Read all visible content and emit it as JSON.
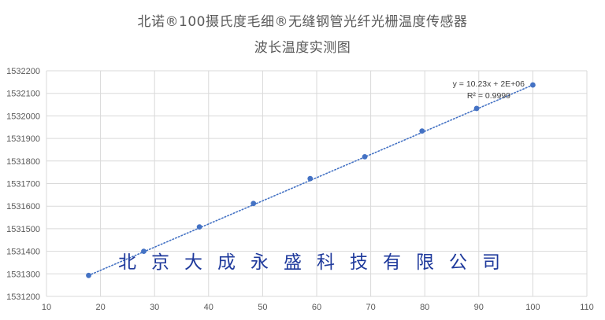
{
  "chart_data": {
    "type": "scatter",
    "title": "北诺®100摄氏度毛细®无缝钢管光纤光栅温度传感器",
    "subtitle": "波长温度实测图",
    "xlabel": "",
    "ylabel": "",
    "xlim": [
      10,
      110
    ],
    "ylim": [
      1531200,
      1532200
    ],
    "xticks": [
      "10",
      "20",
      "30",
      "40",
      "50",
      "60",
      "70",
      "80",
      "90",
      "100",
      "110"
    ],
    "yticks": [
      "1531200",
      "1531300",
      "1531400",
      "1531500",
      "1531600",
      "1531700",
      "1531800",
      "1531900",
      "1532000",
      "1532100",
      "1532200"
    ],
    "grid": true,
    "point_color": "#4472c4",
    "trendline_color": "#4472c4",
    "series": [
      {
        "x": [
          17.8,
          28.0,
          38.3,
          48.3,
          58.8,
          68.9,
          79.5,
          89.6,
          100
        ],
        "y": [
          1531293,
          1531400,
          1531508,
          1531612,
          1531722,
          1531819,
          1531933,
          1532033,
          1532137
        ]
      }
    ],
    "trendline": {
      "type": "linear",
      "x_range": [
        17.8,
        100
      ],
      "y_range": [
        1531293,
        1532137
      ],
      "equation": "y = 10.23x + 2E+06",
      "r_squared": "R² = 0.9999"
    }
  },
  "watermark": "北京大成永盛科技有限公司"
}
